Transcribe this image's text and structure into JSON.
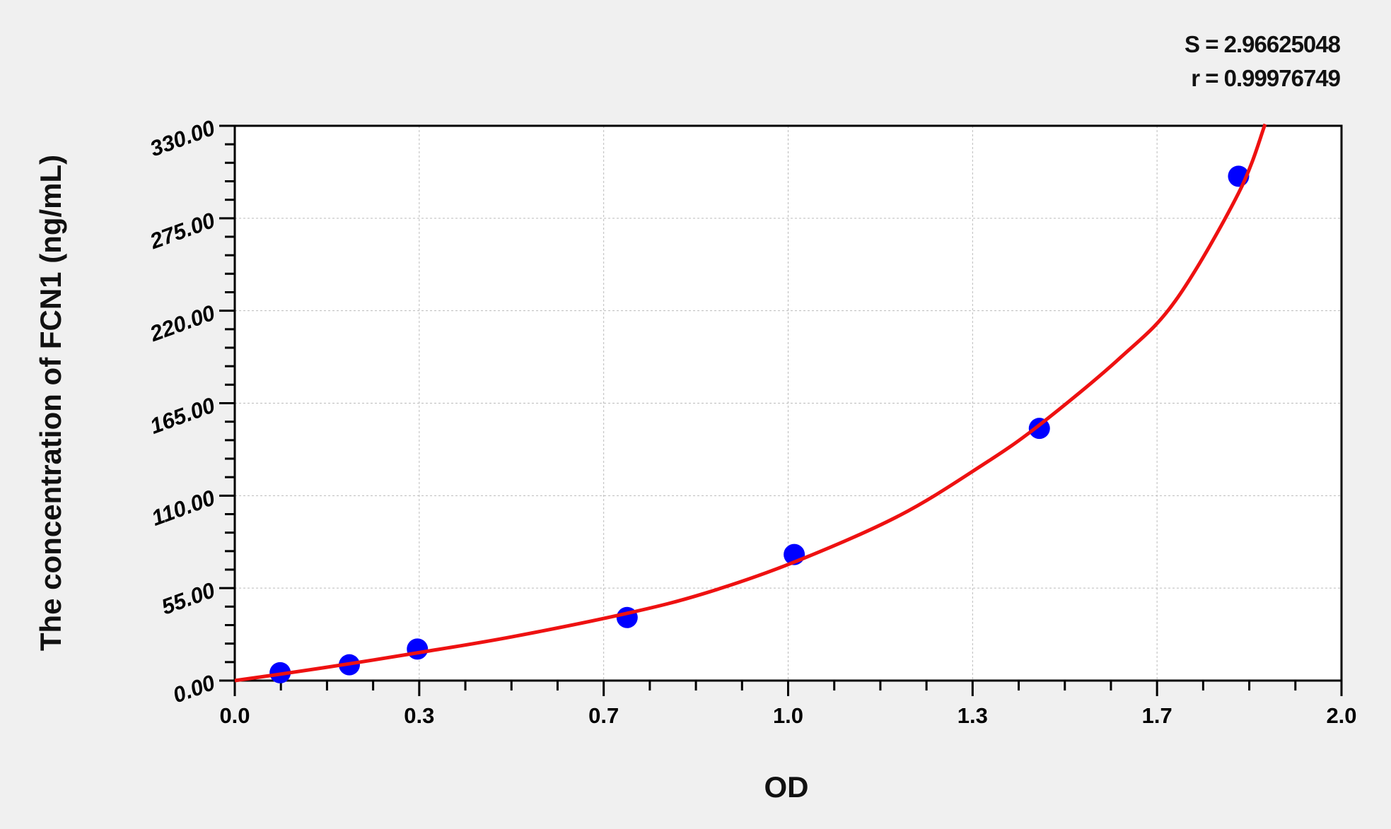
{
  "chart_data": {
    "type": "scatter",
    "xlabel": "OD",
    "ylabel": "The concentration of FCN1 (ng/mL)",
    "xlim": [
      0,
      2.0
    ],
    "ylim": [
      0,
      330
    ],
    "x_ticks": [
      "0.0",
      "0.3",
      "0.7",
      "1.0",
      "1.3",
      "1.7",
      "2.0"
    ],
    "y_ticks": [
      "0.00",
      "55.00",
      "110.00",
      "165.00",
      "220.00",
      "275.00",
      "330.00"
    ],
    "grid": true,
    "annotations": [
      "S = 2.96625048",
      "r = 0.99976749"
    ],
    "series": [
      {
        "type": "scatter",
        "color": "#0000ff",
        "x": [
          0.082,
          0.207,
          0.33,
          0.709,
          1.011,
          1.454,
          1.814
        ],
        "y": [
          4.69,
          9.38,
          18.75,
          37.5,
          75,
          150,
          300
        ]
      },
      {
        "type": "line",
        "color": "#ee1111",
        "x": [
          0.0,
          0.082,
          0.207,
          0.33,
          0.5,
          0.709,
          0.85,
          1.011,
          1.2,
          1.35,
          1.454,
          1.6,
          1.7,
          1.814,
          1.862
        ],
        "y": [
          0,
          3.8,
          10.0,
          16.5,
          26.0,
          40.0,
          52.0,
          70.5,
          98.0,
          128.0,
          152.0,
          192.0,
          226.0,
          290.0,
          331.0
        ]
      }
    ]
  }
}
